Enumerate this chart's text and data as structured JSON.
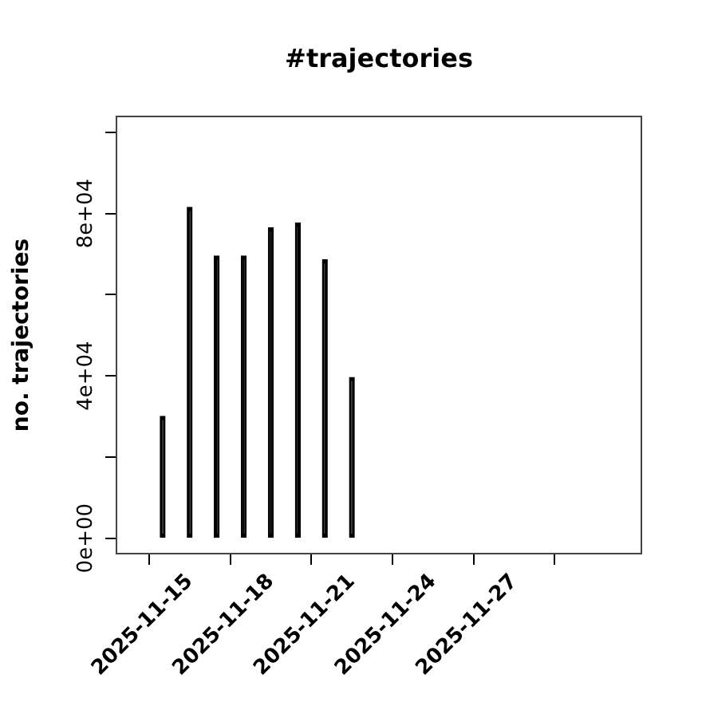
{
  "chart_data": {
    "type": "bar",
    "title": "#trajectories",
    "ylabel": "no. trajectories",
    "x": [
      "2025-11-14",
      "2025-11-15",
      "2025-11-16",
      "2025-11-17",
      "2025-11-18",
      "2025-11-19",
      "2025-11-20",
      "2025-11-21",
      "2025-11-22",
      "2025-11-23",
      "2025-11-24",
      "2025-11-25",
      "2025-11-26",
      "2025-11-27",
      "2025-11-28",
      "2025-11-29",
      "2025-11-30"
    ],
    "values": [
      30000,
      81500,
      69500,
      69500,
      76500,
      77700,
      68600,
      39600,
      0,
      0,
      0,
      0,
      0,
      0,
      0,
      0,
      0
    ],
    "color": "#000000",
    "xlim": [
      "2025-11-12T07:00",
      "2025-12-01T17:00"
    ],
    "xticks": [
      "2025-11-15",
      "2025-11-18",
      "2025-11-21",
      "2025-11-24",
      "2025-11-27"
    ],
    "ylim": [
      -3800,
      103900
    ],
    "yticks": [
      {
        "value": 0,
        "label": "0e+00"
      },
      {
        "value": 20000,
        "label": null
      },
      {
        "value": 40000,
        "label": "4e+04"
      },
      {
        "value": 60000,
        "label": null
      },
      {
        "value": 80000,
        "label": "8e+04"
      },
      {
        "value": 100000,
        "label": null
      }
    ]
  }
}
